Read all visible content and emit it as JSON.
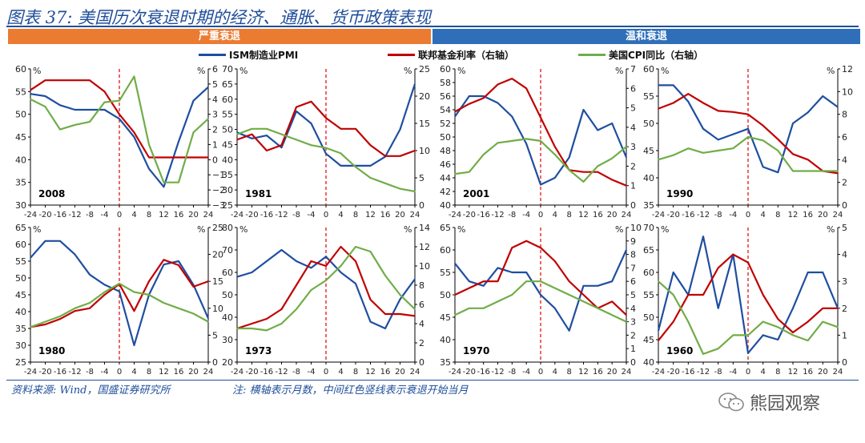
{
  "title": "图表 37:  美国历次衰退时期的经济、通胀、货币政策表现",
  "bands": {
    "left": "严重衰退",
    "right": "温和衰退"
  },
  "legend": {
    "pmi": "ISM制造业PMI",
    "fed": "联邦基金利率（右轴）",
    "cpi": "美国CPI同比（右轴）"
  },
  "colors": {
    "pmi": "#1f4ea0",
    "fed": "#c00000",
    "cpi": "#70ad47",
    "recession_line": "#e00000"
  },
  "footer": {
    "source": "资料来源:  Wind，国盛证券研究所",
    "note": "注:  横轴表示月数，中间红色竖线表示衰退开始当月"
  },
  "watermark": "熊园观察",
  "chart_data": [
    {
      "type": "line",
      "label": "2008",
      "x": [
        -24,
        -20,
        -16,
        -12,
        -8,
        -4,
        0,
        4,
        8,
        12,
        16,
        20,
        24
      ],
      "xticks": [
        "-24",
        "-20",
        "-16",
        "-12",
        "-8",
        "-4",
        "0",
        "4",
        "8",
        "12",
        "16",
        "20",
        "24"
      ],
      "left_unit": "%",
      "right_unit": "%",
      "ylim_left": [
        30,
        60
      ],
      "yticks_left": [
        "30",
        "35",
        "40",
        "45",
        "50",
        "55",
        "60"
      ],
      "ylim_right": [
        -3,
        6
      ],
      "yticks_right": [
        "−3",
        "−2",
        "−1",
        "0",
        "1",
        "2",
        "3",
        "4",
        "5",
        "6"
      ],
      "series": [
        {
          "key": "pmi",
          "axis": "left",
          "values": [
            54.5,
            54,
            52,
            51,
            51,
            51,
            49,
            45,
            38,
            34,
            44,
            53,
            56
          ]
        },
        {
          "key": "fed",
          "axis": "right",
          "values": [
            4.6,
            5.25,
            5.25,
            5.25,
            5.25,
            4.5,
            3.0,
            1.8,
            0.15,
            0.15,
            0.15,
            0.15,
            0.15
          ]
        },
        {
          "key": "cpi",
          "axis": "right",
          "values": [
            4.0,
            3.5,
            2.0,
            2.3,
            2.5,
            3.8,
            3.9,
            5.5,
            1.0,
            -1.5,
            -1.5,
            1.8,
            2.7
          ]
        }
      ]
    },
    {
      "type": "line",
      "label": "1981",
      "x": [
        -24,
        -20,
        -16,
        -12,
        -8,
        -4,
        0,
        4,
        8,
        12,
        16,
        20,
        24
      ],
      "xticks": [
        "-24",
        "-20",
        "-16",
        "-12",
        "-8",
        "-4",
        "0",
        "4",
        "8",
        "12",
        "16",
        "20",
        "24"
      ],
      "left_unit": "%",
      "right_unit": "%",
      "ylim_left": [
        25,
        70
      ],
      "yticks_left": [
        "25",
        "30",
        "35",
        "40",
        "45",
        "50",
        "55",
        "60",
        "65",
        "70"
      ],
      "ylim_right": [
        0,
        25
      ],
      "yticks_right": [
        "0",
        "5",
        "10",
        "15",
        "20",
        "25"
      ],
      "series": [
        {
          "key": "pmi",
          "axis": "left",
          "values": [
            49,
            47,
            48,
            44,
            56,
            52,
            42,
            38,
            38,
            38,
            41,
            50,
            65
          ]
        },
        {
          "key": "fed",
          "axis": "right",
          "values": [
            12,
            13,
            10,
            11,
            18,
            19,
            16,
            14,
            14,
            11,
            9,
            9,
            10
          ]
        },
        {
          "key": "cpi",
          "axis": "right",
          "values": [
            13,
            14,
            14,
            13,
            12,
            11,
            10.5,
            9.5,
            7,
            5,
            4,
            3,
            2.5
          ]
        }
      ]
    },
    {
      "type": "line",
      "label": "2001",
      "x": [
        -24,
        -20,
        -16,
        -12,
        -8,
        -4,
        0,
        4,
        8,
        12,
        16,
        20,
        24
      ],
      "xticks": [
        "-24",
        "-20",
        "-16",
        "-12",
        "-8",
        "-4",
        "0",
        "4",
        "8",
        "12",
        "16",
        "20",
        "24"
      ],
      "left_unit": "%",
      "right_unit": "%",
      "ylim_left": [
        40,
        60
      ],
      "yticks_left": [
        "40",
        "42",
        "44",
        "46",
        "48",
        "50",
        "52",
        "54",
        "56",
        "58",
        "60"
      ],
      "ylim_right": [
        0,
        7
      ],
      "yticks_right": [
        "0",
        "1",
        "2",
        "3",
        "4",
        "5",
        "6",
        "7"
      ],
      "series": [
        {
          "key": "pmi",
          "axis": "left",
          "values": [
            53,
            56,
            56,
            55,
            53,
            49,
            43,
            44,
            47,
            54,
            51,
            52,
            47
          ]
        },
        {
          "key": "fed",
          "axis": "right",
          "values": [
            4.8,
            5.2,
            5.5,
            6.2,
            6.5,
            6.0,
            4.5,
            3.0,
            1.8,
            1.7,
            1.7,
            1.3,
            1.0
          ]
        },
        {
          "key": "cpi",
          "axis": "right",
          "values": [
            1.6,
            1.7,
            2.6,
            3.2,
            3.3,
            3.4,
            3.3,
            2.6,
            1.8,
            1.2,
            2.0,
            2.4,
            3.0
          ]
        }
      ]
    },
    {
      "type": "line",
      "label": "1990",
      "x": [
        -24,
        -20,
        -16,
        -12,
        -8,
        -4,
        0,
        4,
        8,
        12,
        16,
        20,
        24
      ],
      "xticks": [
        "-24",
        "-20",
        "-16",
        "-12",
        "-8",
        "-4",
        "0",
        "4",
        "8",
        "12",
        "16",
        "20",
        "24"
      ],
      "left_unit": "%",
      "right_unit": "%",
      "ylim_left": [
        35,
        60
      ],
      "yticks_left": [
        "35",
        "40",
        "45",
        "50",
        "55",
        "60"
      ],
      "ylim_right": [
        0,
        12
      ],
      "yticks_right": [
        "0",
        "2",
        "4",
        "6",
        "8",
        "10",
        "12"
      ],
      "series": [
        {
          "key": "pmi",
          "axis": "left",
          "values": [
            57,
            57,
            54,
            49,
            47,
            48,
            49,
            42,
            41,
            50,
            52,
            55,
            53
          ]
        },
        {
          "key": "fed",
          "axis": "right",
          "values": [
            8.5,
            9.0,
            9.8,
            9.0,
            8.3,
            8.2,
            8.0,
            7.0,
            5.8,
            4.5,
            4.0,
            3.0,
            2.8
          ]
        },
        {
          "key": "cpi",
          "axis": "right",
          "values": [
            4.0,
            4.4,
            5.0,
            4.6,
            4.8,
            5.0,
            6.0,
            5.7,
            4.8,
            3.0,
            3.0,
            3.0,
            3.0
          ]
        }
      ]
    },
    {
      "type": "line",
      "label": "1980",
      "x": [
        -24,
        -20,
        -16,
        -12,
        -8,
        -4,
        0,
        4,
        8,
        12,
        16,
        20,
        24
      ],
      "xticks": [
        "-24",
        "-20",
        "-16",
        "-12",
        "-8",
        "-4",
        "0",
        "4",
        "8",
        "12",
        "16",
        "20",
        "24"
      ],
      "left_unit": "%",
      "right_unit": "%",
      "ylim_left": [
        25,
        65
      ],
      "yticks_left": [
        "25",
        "30",
        "35",
        "40",
        "45",
        "50",
        "55",
        "60",
        "65"
      ],
      "ylim_right": [
        0,
        25
      ],
      "yticks_right": [
        "0",
        "5",
        "10",
        "15",
        "20",
        "25"
      ],
      "series": [
        {
          "key": "pmi",
          "axis": "left",
          "values": [
            56,
            61,
            61,
            57,
            51,
            48,
            46,
            30,
            45,
            54,
            55,
            48,
            38
          ]
        },
        {
          "key": "fed",
          "axis": "right",
          "values": [
            6.5,
            7.0,
            8.0,
            9.5,
            10.0,
            12.5,
            14.5,
            9.5,
            15.0,
            19.0,
            18.0,
            14.0,
            15.0
          ]
        },
        {
          "key": "cpi",
          "axis": "right",
          "values": [
            6.5,
            7.5,
            8.5,
            10.0,
            11.0,
            13.0,
            14.6,
            13.0,
            12.5,
            11.0,
            10.0,
            9.0,
            7.5
          ]
        }
      ]
    },
    {
      "type": "line",
      "label": "1973",
      "x": [
        -24,
        -20,
        -16,
        -12,
        -8,
        -4,
        0,
        4,
        8,
        12,
        16,
        20,
        24
      ],
      "xticks": [
        "-24",
        "-20",
        "-16",
        "-12",
        "-8",
        "-4",
        "0",
        "4",
        "8",
        "12",
        "16",
        "20",
        "24"
      ],
      "left_unit": "%",
      "right_unit": "%",
      "ylim_left": [
        20,
        80
      ],
      "yticks_left": [
        "20",
        "30",
        "40",
        "50",
        "60",
        "70",
        "80"
      ],
      "ylim_right": [
        0,
        14
      ],
      "yticks_right": [
        "0",
        "2",
        "4",
        "6",
        "8",
        "10",
        "12",
        "14"
      ],
      "series": [
        {
          "key": "pmi",
          "axis": "left",
          "values": [
            58,
            60,
            65,
            70,
            65,
            62,
            67,
            60,
            55,
            38,
            35,
            48,
            57
          ]
        },
        {
          "key": "fed",
          "axis": "right",
          "values": [
            3.5,
            4.0,
            4.5,
            5.5,
            8.0,
            10.5,
            10.0,
            12.0,
            10.5,
            6.5,
            5.0,
            5.0,
            4.8
          ]
        },
        {
          "key": "cpi",
          "axis": "right",
          "values": [
            3.5,
            3.5,
            3.3,
            4.0,
            5.5,
            7.5,
            8.5,
            10.0,
            12.0,
            11.5,
            9.0,
            7.0,
            5.5
          ]
        }
      ]
    },
    {
      "type": "line",
      "label": "1970",
      "x": [
        -24,
        -20,
        -16,
        -12,
        -8,
        -4,
        0,
        4,
        8,
        12,
        16,
        20,
        24
      ],
      "xticks": [
        "-24",
        "-20",
        "-16",
        "-12",
        "-8",
        "-4",
        "0",
        "4",
        "8",
        "12",
        "16",
        "20",
        "24"
      ],
      "left_unit": "%",
      "right_unit": "%",
      "ylim_left": [
        35,
        65
      ],
      "yticks_left": [
        "35",
        "40",
        "45",
        "50",
        "55",
        "60",
        "65"
      ],
      "ylim_right": [
        0,
        10
      ],
      "yticks_right": [
        "0",
        "1",
        "2",
        "3",
        "4",
        "5",
        "6",
        "7",
        "8",
        "9",
        "10"
      ],
      "series": [
        {
          "key": "pmi",
          "axis": "left",
          "values": [
            57,
            53,
            52,
            56,
            55,
            55,
            50,
            47,
            42,
            52,
            52,
            53,
            60
          ]
        },
        {
          "key": "fed",
          "axis": "right",
          "values": [
            5.0,
            5.5,
            6.0,
            6.0,
            8.5,
            9.0,
            8.5,
            7.5,
            6.0,
            5.0,
            4.0,
            4.5,
            3.5
          ]
        },
        {
          "key": "cpi",
          "axis": "right",
          "values": [
            3.5,
            4.0,
            4.0,
            4.5,
            5.0,
            6.0,
            6.0,
            5.5,
            5.0,
            4.5,
            4.0,
            3.5,
            3.0
          ]
        }
      ]
    },
    {
      "type": "line",
      "label": "1960",
      "x": [
        -24,
        -20,
        -16,
        -12,
        -8,
        -4,
        0,
        4,
        8,
        12,
        16,
        20,
        24
      ],
      "xticks": [
        "-24",
        "-20",
        "-16",
        "-12",
        "-8",
        "-4",
        "0",
        "4",
        "8",
        "12",
        "16",
        "20",
        "24"
      ],
      "left_unit": "%",
      "right_unit": "%",
      "ylim_left": [
        40,
        70
      ],
      "yticks_left": [
        "40",
        "45",
        "50",
        "55",
        "60",
        "65",
        "70"
      ],
      "ylim_right": [
        0,
        5
      ],
      "yticks_right": [
        "0",
        "1",
        "2",
        "3",
        "4",
        "5"
      ],
      "series": [
        {
          "key": "pmi",
          "axis": "left",
          "values": [
            47,
            60,
            55,
            68,
            52,
            64,
            42,
            46,
            45,
            52,
            60,
            60,
            52
          ]
        },
        {
          "key": "fed",
          "axis": "right",
          "values": [
            0.8,
            1.5,
            2.5,
            2.5,
            3.5,
            4.0,
            3.7,
            2.5,
            1.6,
            1.1,
            1.5,
            2.0,
            2.0
          ]
        },
        {
          "key": "cpi",
          "axis": "right",
          "values": [
            3.0,
            2.5,
            1.5,
            0.3,
            0.5,
            1.0,
            1.0,
            1.5,
            1.3,
            1.0,
            0.8,
            1.5,
            1.3
          ]
        }
      ]
    }
  ]
}
